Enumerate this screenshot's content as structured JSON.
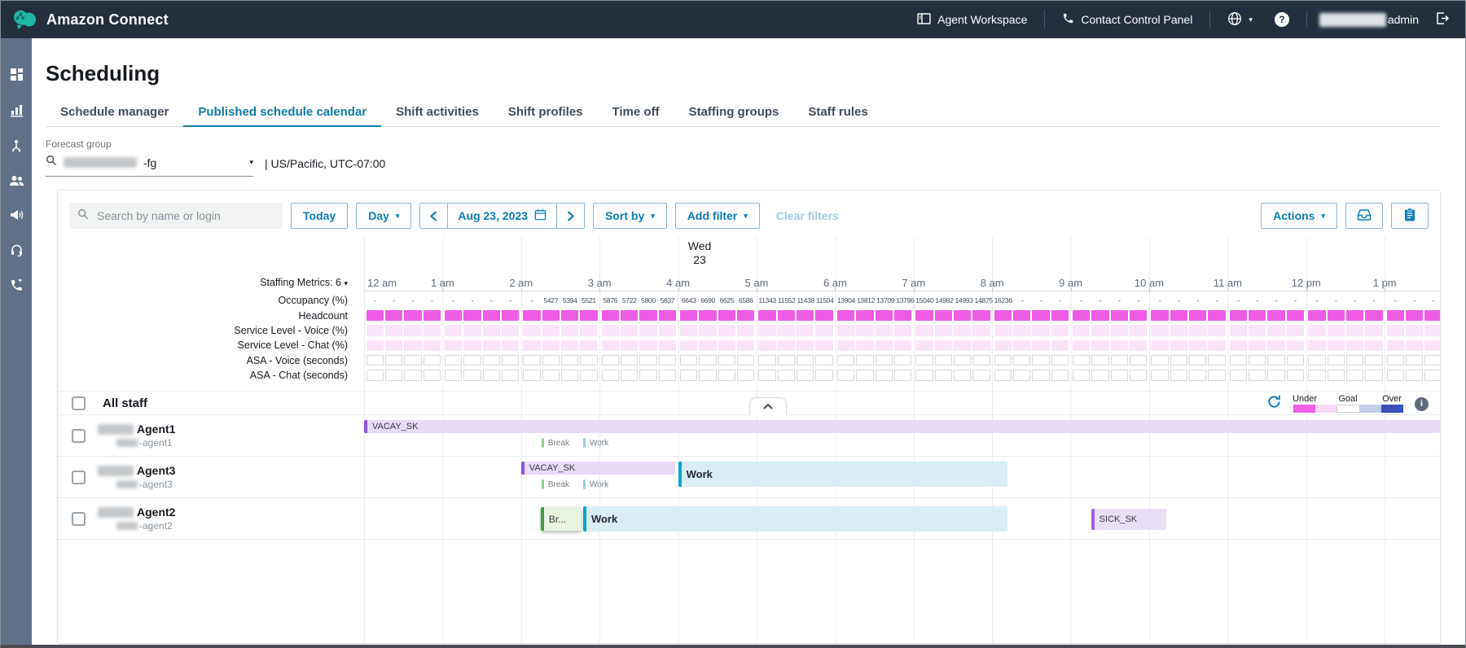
{
  "topbar": {
    "app_title": "Amazon Connect",
    "agent_workspace": "Agent Workspace",
    "contact_control_panel": "Contact Control Panel",
    "admin_label": "admin",
    "icons": [
      "workspace-icon",
      "phone-icon",
      "globe-icon",
      "help-icon",
      "sign-out-icon"
    ]
  },
  "sidebar": {
    "icons": [
      "dashboard-icon",
      "metrics-icon",
      "routing-icon",
      "users-icon",
      "announce-icon",
      "headset-icon",
      "calls-icon"
    ]
  },
  "page": {
    "title": "Scheduling",
    "tabs": [
      {
        "label": "Schedule manager",
        "active": false
      },
      {
        "label": "Published schedule calendar",
        "active": true
      },
      {
        "label": "Shift activities",
        "active": false
      },
      {
        "label": "Shift profiles",
        "active": false
      },
      {
        "label": "Time off",
        "active": false
      },
      {
        "label": "Staffing groups",
        "active": false
      },
      {
        "label": "Staff rules",
        "active": false
      }
    ],
    "forecast_group": {
      "label": "Forecast group",
      "value_suffix": "-fg",
      "timezone": "| US/Pacific, UTC-07:00"
    }
  },
  "toolbar": {
    "search_placeholder": "Search by name or login",
    "today": "Today",
    "day": "Day",
    "date": "Aug 23, 2023",
    "sort_by": "Sort by",
    "add_filter": "Add filter",
    "clear_filters": "Clear filters",
    "actions": "Actions"
  },
  "calendar": {
    "day_label": "Wed",
    "day_number": "23",
    "staffing_metrics_label": "Staffing Metrics: 6",
    "hours": [
      "12 am",
      "1 am",
      "2 am",
      "3 am",
      "4 am",
      "5 am",
      "6 am",
      "7 am",
      "8 am",
      "9 am",
      "10 am",
      "11 am",
      "12 pm",
      "1 pm"
    ],
    "metrics": [
      {
        "label": "Occupancy (%)",
        "type": "text"
      },
      {
        "label": "Headcount",
        "type": "filled"
      },
      {
        "label": "Service Level - Voice (%)",
        "type": "light"
      },
      {
        "label": "Service Level - Chat (%)",
        "type": "light"
      },
      {
        "label": "ASA - Voice (seconds)",
        "type": "outline"
      },
      {
        "label": "ASA - Chat (seconds)",
        "type": "outline"
      }
    ],
    "occupancy_values": [
      "-",
      "-",
      "-",
      "-",
      "-",
      "-",
      "-",
      "-",
      "-",
      "5427",
      "5394",
      "5521",
      "5876",
      "5722",
      "5800",
      "5837",
      "6643",
      "6690",
      "6625",
      "6586",
      "11343",
      "11552",
      "11438",
      "11504",
      "13904",
      "13812",
      "13709",
      "13796",
      "15040",
      "14982",
      "14993",
      "14875",
      "16236",
      "-",
      "-",
      "-",
      "-",
      "-",
      "-",
      "-",
      "-",
      "-",
      "-",
      "-",
      "-",
      "-",
      "-",
      "-",
      "-",
      "-",
      "-",
      "-",
      "-",
      "-",
      "-",
      "-"
    ],
    "all_staff_label": "All staff",
    "legend": {
      "under": "Under",
      "goal": "Goal",
      "over": "Over",
      "colors": [
        "#f25ee4",
        "#fbd9f7",
        "#ffffff",
        "#c5cdea",
        "#3a50b8"
      ]
    },
    "agents": [
      {
        "name_suffix": "Agent1",
        "login_suffix": "-agent1",
        "events": [
          {
            "label": "VACAY_SK",
            "type": "vacay",
            "start": 0,
            "end": 14.5
          }
        ],
        "minis": [
          {
            "label": "Break",
            "type": "break",
            "start": 2.26
          },
          {
            "label": "Work",
            "type": "work",
            "start": 2.79
          }
        ]
      },
      {
        "name_suffix": "Agent3",
        "login_suffix": "-agent3",
        "events": [
          {
            "label": "VACAY_SK",
            "type": "vacay",
            "start": 2,
            "end": 3.96
          },
          {
            "label": "Work",
            "type": "work",
            "start": 4,
            "end": 8.2
          }
        ],
        "minis": [
          {
            "label": "Break",
            "type": "break",
            "start": 2.26
          },
          {
            "label": "Work",
            "type": "work",
            "start": 2.79
          }
        ]
      },
      {
        "name_suffix": "Agent2",
        "login_suffix": "-agent2",
        "events": [
          {
            "label": "Br...",
            "type": "break",
            "start": 2.25,
            "end": 2.77
          },
          {
            "label": "Work",
            "type": "work",
            "start": 2.79,
            "end": 8.2
          },
          {
            "label": "SICK_SK",
            "type": "sick",
            "start": 9.26,
            "end": 10.22
          }
        ],
        "minis": []
      }
    ]
  },
  "colors": {
    "topbar_bg": "#232f3e",
    "sidebar_bg": "#5f7189",
    "brand_teal": "#1fb7a6",
    "action_blue": "#0a7cb8",
    "active_tab": "#0c7ca8",
    "headcount_fill": "#ee5ce5",
    "service_level_fill": "#fbe4f9",
    "vacay_accent": "#8a55e0",
    "sick_accent": "#a15ef0",
    "work_accent": "#0aa6ce",
    "break_accent": "#3f9b44"
  }
}
